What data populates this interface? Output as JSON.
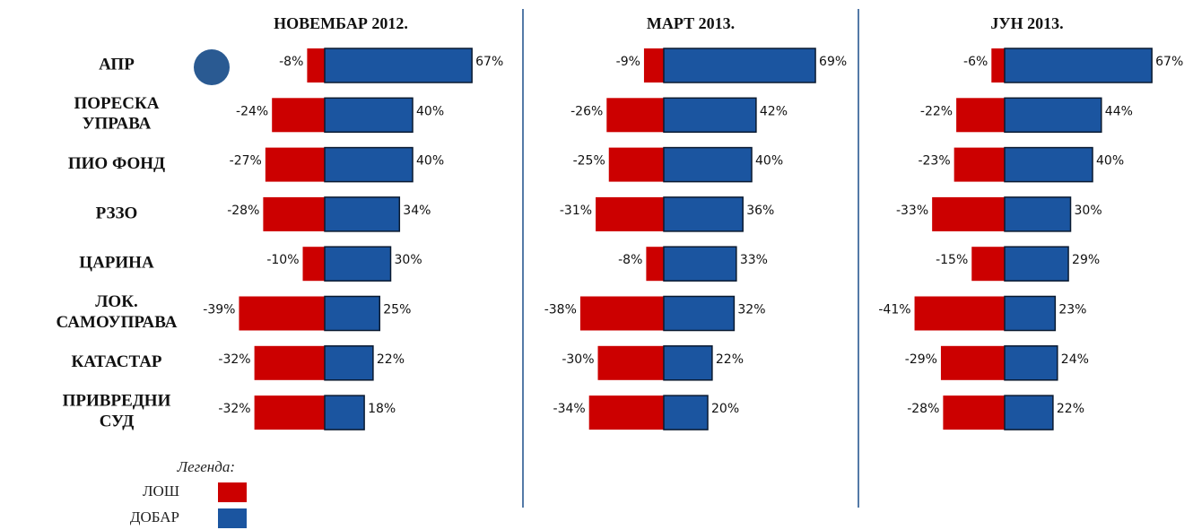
{
  "chart_data": {
    "type": "diverging-bar",
    "categories": [
      "АПР",
      "ПОРЕСКА\nУПРАВА",
      "ПИО ФОНД",
      "РЗЗО",
      "ЦАРИНА",
      "ЛОК.\nСАМОУПРАВА",
      "КАТАСТАР",
      "ПРИВРЕДНИ\nСУД"
    ],
    "legend_title": "Легенда:",
    "legend": [
      {
        "name": "ЛОШ",
        "color": "#cc0000"
      },
      {
        "name": "ДОБАР",
        "color": "#1b55a0"
      }
    ],
    "panels": [
      {
        "title": "НОВЕМБАР 2012.",
        "series": [
          {
            "name": "ЛОШ",
            "values": [
              -8,
              -24,
              -27,
              -28,
              -10,
              -39,
              -32,
              -32
            ],
            "value_labels": [
              "-8%",
              "-24%",
              "-27%",
              "-28%",
              "-10%",
              "-39%",
              "-32%",
              "-32%"
            ]
          },
          {
            "name": "ДОБАР",
            "values": [
              67,
              40,
              40,
              34,
              30,
              25,
              22,
              18
            ],
            "value_labels": [
              "67%",
              "40%",
              "40%",
              "34%",
              "30%",
              "25%",
              "22%",
              "18%"
            ]
          }
        ]
      },
      {
        "title": "МАРТ 2013.",
        "series": [
          {
            "name": "ЛОШ",
            "values": [
              -9,
              -26,
              -25,
              -31,
              -8,
              -38,
              -30,
              -34
            ],
            "value_labels": [
              "-9%",
              "-26%",
              "-25%",
              "-31%",
              "-8%",
              "-38%",
              "-30%",
              "-34%"
            ]
          },
          {
            "name": "ДОБАР",
            "values": [
              69,
              42,
              40,
              36,
              33,
              32,
              22,
              20
            ],
            "value_labels": [
              "69%",
              "42%",
              "40%",
              "36%",
              "33%",
              "32%",
              "22%",
              "20%"
            ]
          }
        ]
      },
      {
        "title": "ЈУН 2013.",
        "series": [
          {
            "name": "ЛОШ",
            "values": [
              -6,
              -22,
              -23,
              -33,
              -15,
              -41,
              -29,
              -28
            ],
            "value_labels": [
              "-6%",
              "-22%",
              "-23%",
              "-33%",
              "-15%",
              "-41%",
              "-29%",
              "-28%"
            ]
          },
          {
            "name": "ДОБАР",
            "values": [
              67,
              44,
              40,
              30,
              29,
              23,
              24,
              22
            ],
            "value_labels": [
              "67%",
              "44%",
              "40%",
              "30%",
              "29%",
              "23%",
              "24%",
              "22%"
            ]
          }
        ]
      }
    ]
  }
}
